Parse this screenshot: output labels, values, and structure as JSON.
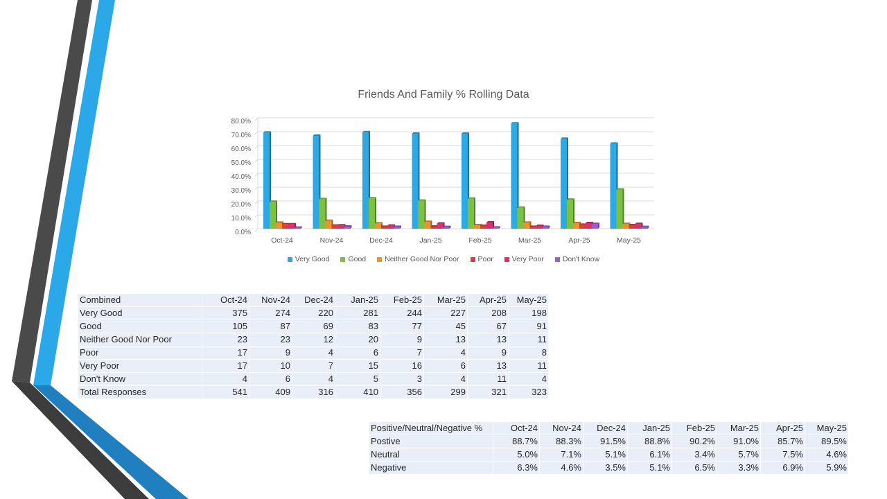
{
  "colors": {
    "very_good": "#2da9e8",
    "good": "#7cc242",
    "neither": "#e8952f",
    "poor": "#e23d3d",
    "very_poor": "#d6336c",
    "dont_know": "#a05ad6",
    "deco_dark": "#4a4a4a",
    "deco_blue": "#2aa8e8",
    "deco_navy": "#1f7fbf"
  },
  "chart_data": {
    "type": "bar",
    "title": "Friends And Family % Rolling Data",
    "categories": [
      "Oct-24",
      "Nov-24",
      "Dec-24",
      "Jan-25",
      "Feb-25",
      "Mar-25",
      "Apr-25",
      "May-25"
    ],
    "ylim": [
      0,
      80
    ],
    "y_ticks": [
      0,
      10,
      20,
      30,
      40,
      50,
      60,
      70,
      80
    ],
    "y_tick_labels": [
      "0.0%",
      "10.0%",
      "20.0%",
      "30.0%",
      "40.0%",
      "50.0%",
      "60.0%",
      "70.0%",
      "80.0%"
    ],
    "grid": true,
    "legend_position": "bottom",
    "series": [
      {
        "name": "Very Good",
        "color": "#2da9e8",
        "values": [
          69.3,
          67.0,
          69.6,
          68.5,
          68.5,
          75.9,
          64.8,
          61.3
        ]
      },
      {
        "name": "Good",
        "color": "#7cc242",
        "values": [
          19.4,
          21.3,
          21.8,
          20.2,
          21.6,
          15.1,
          20.9,
          28.2
        ]
      },
      {
        "name": "Neither Good Nor Poor",
        "color": "#e8952f",
        "values": [
          4.3,
          5.6,
          3.8,
          4.9,
          2.5,
          4.3,
          4.0,
          3.4
        ]
      },
      {
        "name": "Poor",
        "color": "#e23d3d",
        "values": [
          3.1,
          2.2,
          1.3,
          1.5,
          2.0,
          1.3,
          2.8,
          2.5
        ]
      },
      {
        "name": "Very Poor",
        "color": "#d6336c",
        "values": [
          3.1,
          2.4,
          2.2,
          3.7,
          4.5,
          2.0,
          4.0,
          3.4
        ]
      },
      {
        "name": "Don't Know",
        "color": "#a05ad6",
        "values": [
          0.7,
          1.5,
          1.3,
          1.2,
          0.8,
          1.3,
          3.4,
          1.2
        ]
      }
    ]
  },
  "counts_table": {
    "header": [
      "Combined",
      "Oct-24",
      "Nov-24",
      "Dec-24",
      "Jan-25",
      "Feb-25",
      "Mar-25",
      "Apr-25",
      "May-25"
    ],
    "rows": [
      [
        "Very Good",
        "375",
        "274",
        "220",
        "281",
        "244",
        "227",
        "208",
        "198"
      ],
      [
        "Good",
        "105",
        "87",
        "69",
        "83",
        "77",
        "45",
        "67",
        "91"
      ],
      [
        "Neither Good Nor Poor",
        "23",
        "23",
        "12",
        "20",
        "9",
        "13",
        "13",
        "11"
      ],
      [
        "Poor",
        "17",
        "9",
        "4",
        "6",
        "7",
        "4",
        "9",
        "8"
      ],
      [
        "Very Poor",
        "17",
        "10",
        "7",
        "15",
        "16",
        "6",
        "13",
        "11"
      ],
      [
        "Don't Know",
        "4",
        "6",
        "4",
        "5",
        "3",
        "4",
        "11",
        "4"
      ],
      [
        "Total Responses",
        "541",
        "409",
        "316",
        "410",
        "356",
        "299",
        "321",
        "323"
      ]
    ]
  },
  "pct_table": {
    "header": [
      "Positive/Neutral/Negative %",
      "Oct-24",
      "Nov-24",
      "Dec-24",
      "Jan-25",
      "Feb-25",
      "Mar-25",
      "Apr-25",
      "May-25"
    ],
    "rows": [
      [
        "Postive",
        "88.7%",
        "88.3%",
        "91.5%",
        "88.8%",
        "90.2%",
        "91.0%",
        "85.7%",
        "89.5%"
      ],
      [
        "Neutral",
        "5.0%",
        "7.1%",
        "5.1%",
        "6.1%",
        "3.4%",
        "5.7%",
        "7.5%",
        "4.6%"
      ],
      [
        "Negative",
        "6.3%",
        "4.6%",
        "3.5%",
        "5.1%",
        "6.5%",
        "3.3%",
        "6.9%",
        "5.9%"
      ]
    ]
  }
}
